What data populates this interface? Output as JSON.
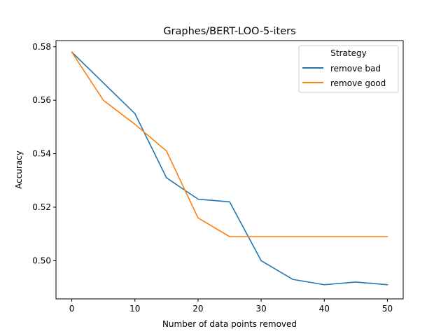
{
  "chart_data": {
    "type": "line",
    "title": "Graphes/BERT-LOO-5-iters",
    "xlabel": "Number of data points removed",
    "ylabel": "Accuracy",
    "xlim": [
      -2.5,
      52.5
    ],
    "ylim": [
      0.4857,
      0.5823
    ],
    "xticks": [
      0,
      10,
      20,
      30,
      40,
      50
    ],
    "yticks": [
      0.5,
      0.52,
      0.54,
      0.56,
      0.58
    ],
    "ytick_labels": [
      "0.50",
      "0.52",
      "0.54",
      "0.56",
      "0.58"
    ],
    "grid": false,
    "legend": {
      "title": "Strategy",
      "placement": "top-right"
    },
    "series": [
      {
        "name": "remove bad",
        "color": "#1f77b4",
        "x": [
          0,
          10,
          15,
          20,
          25,
          30,
          35,
          40,
          45,
          50
        ],
        "y": [
          0.578,
          0.555,
          0.531,
          0.523,
          0.522,
          0.5,
          0.493,
          0.491,
          0.492,
          0.491
        ]
      },
      {
        "name": "remove good",
        "color": "#ff7f0e",
        "x": [
          0,
          5,
          10,
          15,
          20,
          25,
          30,
          35,
          40,
          45,
          50
        ],
        "y": [
          0.578,
          0.56,
          0.551,
          0.541,
          0.516,
          0.509,
          0.509,
          0.509,
          0.509,
          0.509,
          0.509
        ]
      }
    ]
  }
}
